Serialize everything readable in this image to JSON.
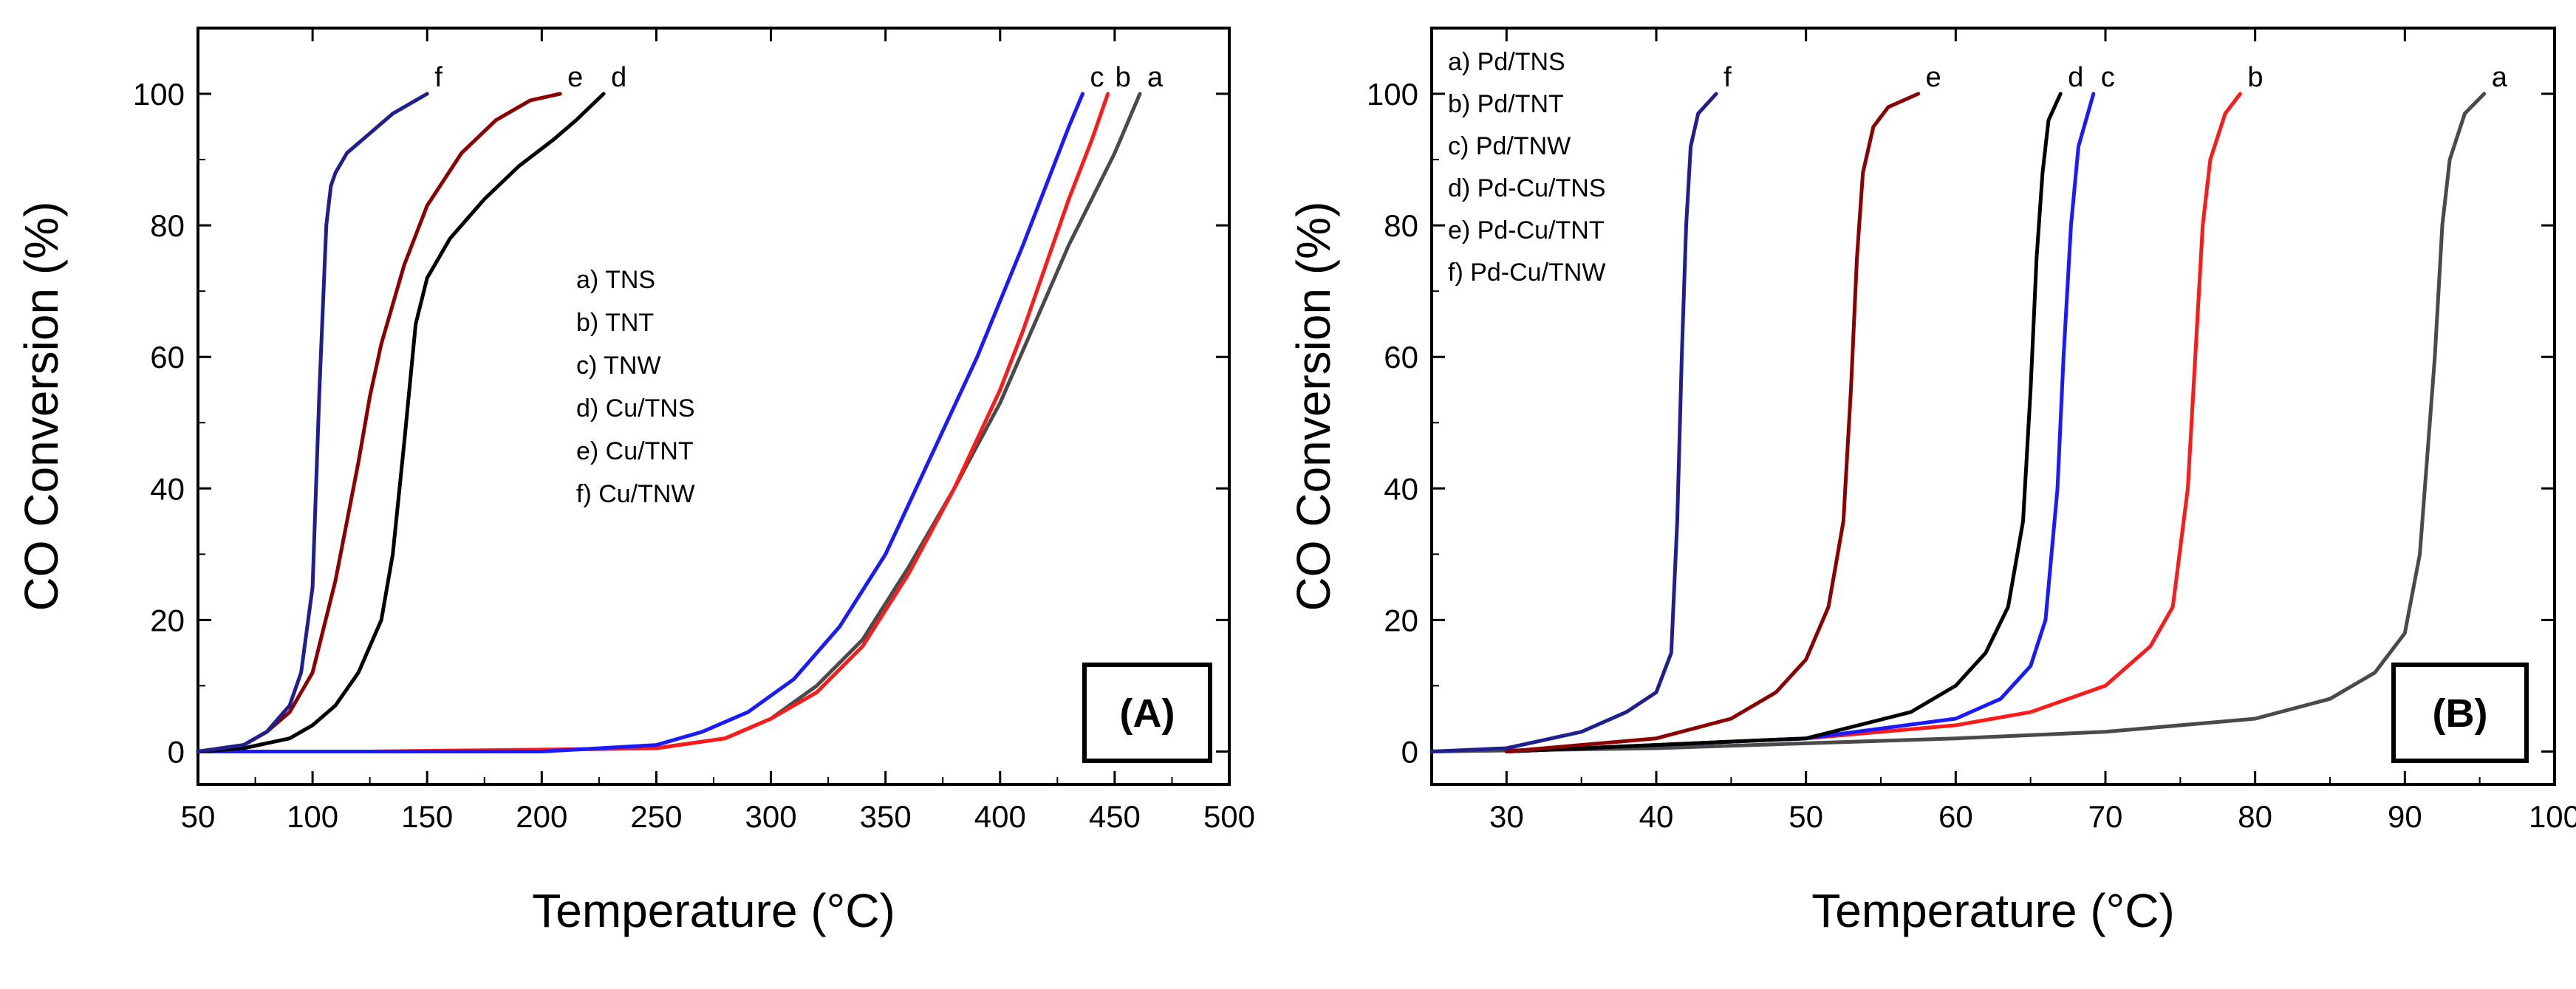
{
  "chart_data": [
    {
      "type": "line",
      "panel": "A",
      "title": "",
      "xlabel": "Temperature",
      "xlabel_unit": "(°C)",
      "ylabel": "CO Conversion (%)",
      "xlim": [
        50,
        500
      ],
      "ylim": [
        -5,
        110
      ],
      "xticks": [
        50,
        100,
        150,
        200,
        250,
        300,
        350,
        400,
        450,
        500
      ],
      "yticks": [
        0,
        20,
        40,
        60,
        80,
        100
      ],
      "legend_position": "center",
      "legend": [
        "a) TNS",
        "b) TNT",
        "c) TNW",
        "d) Cu/TNS",
        "e) Cu/TNT",
        "f) Cu/TNW"
      ],
      "panel_label": "(A)",
      "series": [
        {
          "id": "a",
          "name": "TNS",
          "color": "#4a4a4a",
          "x": [
            50,
            150,
            250,
            280,
            300,
            320,
            340,
            360,
            380,
            400,
            410,
            420,
            430,
            440,
            450,
            461
          ],
          "y": [
            0,
            0,
            0.5,
            2,
            5,
            10,
            17,
            28,
            40,
            53,
            61,
            69,
            77,
            84,
            91,
            100
          ]
        },
        {
          "id": "b",
          "name": "TNT",
          "color": "#ff1a1a",
          "x": [
            125,
            250,
            280,
            300,
            320,
            340,
            360,
            380,
            400,
            410,
            420,
            430,
            440,
            447
          ],
          "y": [
            0,
            0.5,
            2,
            5,
            9,
            16,
            27,
            40,
            55,
            64,
            74,
            84,
            93,
            100
          ]
        },
        {
          "id": "c",
          "name": "TNW",
          "color": "#1a1aff",
          "x": [
            50,
            200,
            250,
            270,
            290,
            310,
            330,
            350,
            370,
            390,
            410,
            420,
            430,
            436
          ],
          "y": [
            0,
            0,
            1,
            3,
            6,
            11,
            19,
            30,
            45,
            60,
            77,
            86,
            95,
            100
          ]
        },
        {
          "id": "d",
          "name": "Cu/TNS",
          "color": "#000000",
          "x": [
            50,
            70,
            90,
            100,
            110,
            120,
            130,
            135,
            140,
            145,
            150,
            160,
            175,
            190,
            205,
            215,
            227
          ],
          "y": [
            0,
            0.5,
            2,
            4,
            7,
            12,
            20,
            30,
            47,
            65,
            72,
            78,
            84,
            89,
            93,
            96,
            100
          ]
        },
        {
          "id": "e",
          "name": "Cu/TNT",
          "color": "#8b0000",
          "x": [
            50,
            70,
            80,
            90,
            100,
            110,
            120,
            125,
            130,
            140,
            150,
            165,
            180,
            195,
            208
          ],
          "y": [
            0,
            1,
            3,
            6,
            12,
            26,
            44,
            54,
            62,
            74,
            83,
            91,
            96,
            99,
            100
          ]
        },
        {
          "id": "f",
          "name": "Cu/TNW",
          "color": "#1f1f8f",
          "x": [
            50,
            70,
            80,
            90,
            95,
            100,
            103,
            106,
            108,
            110,
            115,
            125,
            135,
            145,
            150
          ],
          "y": [
            0,
            1,
            3,
            7,
            12,
            25,
            55,
            80,
            86,
            88,
            91,
            94,
            97,
            99,
            100
          ]
        }
      ]
    },
    {
      "type": "line",
      "panel": "B",
      "title": "",
      "xlabel": "Temperature",
      "xlabel_unit": "(°C)",
      "ylabel": "CO Conversion (%)",
      "xlim": [
        25,
        100
      ],
      "ylim": [
        -5,
        110
      ],
      "xticks": [
        30,
        40,
        50,
        60,
        70,
        80,
        90,
        100
      ],
      "yticks": [
        0,
        20,
        40,
        60,
        80,
        100
      ],
      "legend_position": "top-left",
      "legend": [
        "a) Pd/TNS",
        "b) Pd/TNT",
        "c) Pd/TNW",
        "d) Pd-Cu/TNS",
        "e) Pd-Cu/TNT",
        "f) Pd-Cu/TNW"
      ],
      "panel_label": "(B)",
      "series": [
        {
          "id": "a",
          "name": "Pd/TNS",
          "color": "#4a4a4a",
          "x": [
            25,
            40,
            60,
            70,
            80,
            85,
            88,
            90,
            91,
            92,
            92.5,
            93,
            94,
            95.3
          ],
          "y": [
            0,
            0.5,
            2,
            3,
            5,
            8,
            12,
            18,
            30,
            60,
            80,
            90,
            97,
            100
          ]
        },
        {
          "id": "b",
          "name": "Pd/TNT",
          "color": "#ff1a1a",
          "x": [
            30,
            50,
            60,
            65,
            70,
            73,
            74.5,
            75.5,
            76,
            76.5,
            77,
            78,
            79
          ],
          "y": [
            0,
            2,
            4,
            6,
            10,
            16,
            22,
            40,
            60,
            80,
            90,
            97,
            100
          ]
        },
        {
          "id": "c",
          "name": "Pd/TNW",
          "color": "#1a1aff",
          "x": [
            30,
            50,
            60,
            63,
            65,
            66,
            66.8,
            67.2,
            67.7,
            68.2,
            69.2
          ],
          "y": [
            0,
            2,
            5,
            8,
            13,
            20,
            40,
            60,
            80,
            92,
            100
          ]
        },
        {
          "id": "d",
          "name": "Pd-Cu/TNS",
          "color": "#000000",
          "x": [
            30,
            50,
            57,
            60,
            62,
            63.5,
            64.5,
            65,
            65.4,
            65.8,
            66.2,
            67
          ],
          "y": [
            0,
            2,
            6,
            10,
            15,
            22,
            35,
            55,
            75,
            88,
            96,
            100
          ]
        },
        {
          "id": "e",
          "name": "Pd-Cu/TNT",
          "color": "#8b0000",
          "x": [
            30,
            40,
            45,
            48,
            50,
            51.5,
            52.5,
            53,
            53.4,
            53.8,
            54.5,
            55.5,
            57.5
          ],
          "y": [
            0,
            2,
            5,
            9,
            14,
            22,
            35,
            55,
            75,
            88,
            95,
            98,
            100
          ]
        },
        {
          "id": "f",
          "name": "Pd-Cu/TNW",
          "color": "#1f1f8f",
          "x": [
            25,
            30,
            35,
            38,
            40,
            41,
            41.4,
            41.7,
            42,
            42.3,
            42.8,
            44
          ],
          "y": [
            0,
            0.5,
            3,
            6,
            9,
            15,
            35,
            60,
            80,
            92,
            97,
            100
          ]
        }
      ]
    }
  ]
}
